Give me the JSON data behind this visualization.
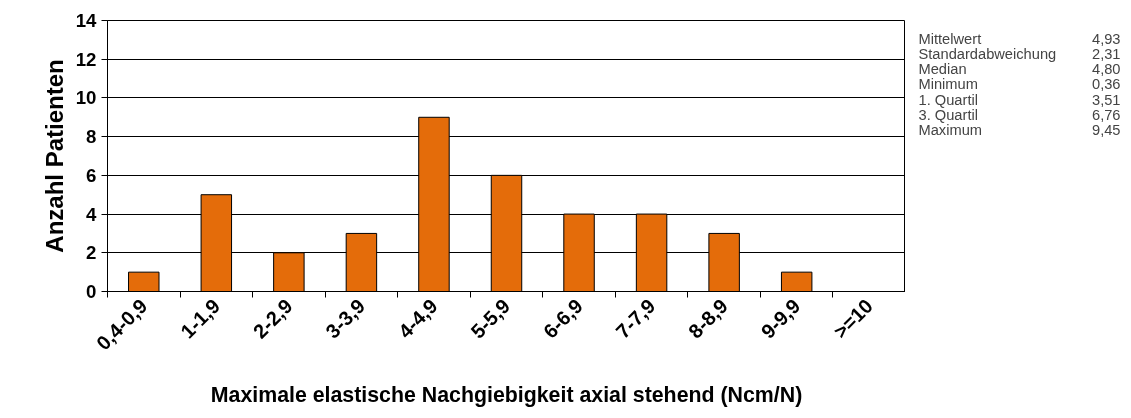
{
  "chart_data": {
    "type": "bar",
    "xlabel": "Maximale elastische Nachgiebigkeit axial stehend (Ncm/N)",
    "ylabel": "Anzahl Patienten",
    "categories": [
      "0,4-0,9",
      "1-1,9",
      "2-2,9",
      "3-3,9",
      "4-4,9",
      "5-5,9",
      "6-6,9",
      "7-7,9",
      "8-8,9",
      "9-9,9",
      ">=10"
    ],
    "values": [
      1,
      5,
      2,
      3,
      9,
      6,
      4,
      4,
      3,
      1,
      0
    ],
    "color": "#e46c0a",
    "ylim": [
      0,
      14
    ],
    "yticks": [
      0,
      2,
      4,
      6,
      8,
      10,
      12,
      14
    ],
    "grid": "y",
    "annotations": [
      "Mittelwert 4,93",
      "Standardabweichung 2,31",
      "Median 4,80",
      "Minimum 0,36",
      "1. Quartil 3,51",
      "3. Quartil 6,76",
      "Maximum 9,45"
    ]
  }
}
